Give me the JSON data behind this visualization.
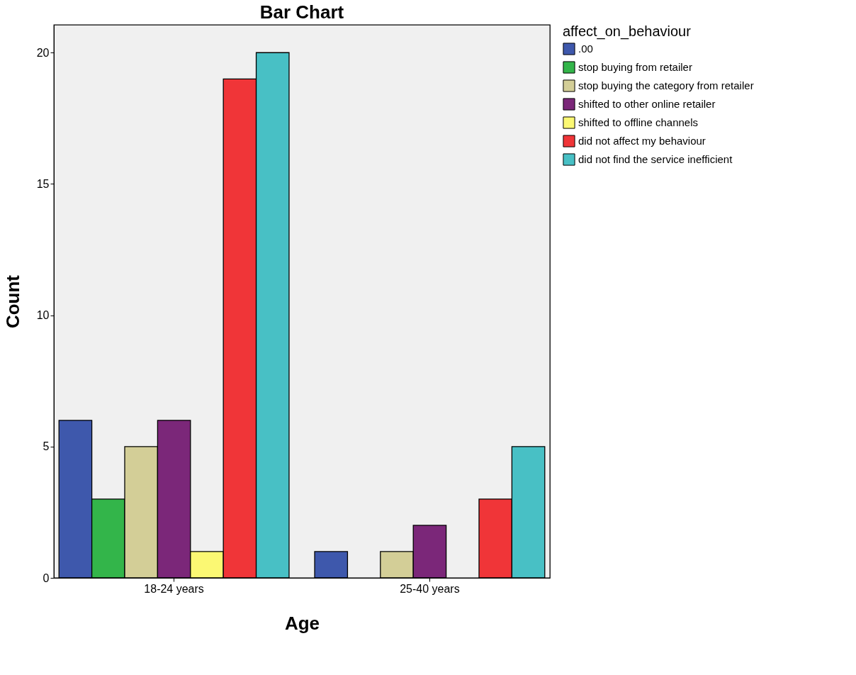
{
  "chart_data": {
    "type": "bar",
    "title": "Bar Chart",
    "xlabel": "Age",
    "ylabel": "Count",
    "legend_title": "affect_on_behaviour",
    "legend": "right",
    "categories": [
      "18-24 years",
      "25-40 years"
    ],
    "ylim": [
      0,
      21.06
    ],
    "yticks": [
      0,
      5,
      10,
      15,
      20
    ],
    "series": [
      {
        "name": ".00",
        "color": "#3e58ac",
        "values": [
          6,
          1
        ]
      },
      {
        "name": "stop buying from retailer",
        "color": "#33b54a",
        "values": [
          3,
          null
        ]
      },
      {
        "name": "stop buying the category from retailer",
        "color": "#d3ce97",
        "values": [
          5,
          1
        ]
      },
      {
        "name": "shifted to other online retailer",
        "color": "#7b2779",
        "values": [
          6,
          2
        ]
      },
      {
        "name": "shifted to offline channels",
        "color": "#fbf873",
        "values": [
          1,
          null
        ]
      },
      {
        "name": "did not affect my behaviour",
        "color": "#f03538",
        "values": [
          19,
          3
        ]
      },
      {
        "name": "did not find the service inefficient",
        "color": "#48c0c5",
        "values": [
          20,
          5
        ]
      }
    ]
  }
}
